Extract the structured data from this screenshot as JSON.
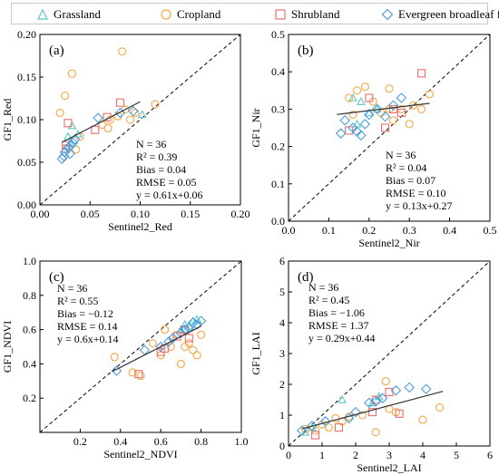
{
  "legend": {
    "items": [
      {
        "label": "Grassland",
        "marker": "triangle",
        "color": "#5fc7c9"
      },
      {
        "label": "Cropland",
        "marker": "circle",
        "color": "#f5a742"
      },
      {
        "label": "Shrubland",
        "marker": "square",
        "color": "#ee6e6e"
      },
      {
        "label": "Evergreen broadleaf forest",
        "marker": "diamond",
        "color": "#4a9fdc"
      }
    ]
  },
  "chart_data": [
    {
      "type": "scatter",
      "panel": "(a)",
      "xlabel": "Sentinel2_Red",
      "ylabel": "GF1_Red",
      "xlim": [
        0,
        0.2
      ],
      "ylim": [
        0,
        0.2
      ],
      "xticks": [
        "0.00",
        "0.05",
        "0.10",
        "0.15",
        "0.20"
      ],
      "yticks": [
        "0.00",
        "0.05",
        "0.10",
        "0.15",
        "0.20"
      ],
      "xtick_values": [
        0,
        0.05,
        0.1,
        0.15,
        0.2
      ],
      "ytick_values": [
        0,
        0.05,
        0.1,
        0.15,
        0.2
      ],
      "stats": [
        "N = 36",
        "R² = 0.39",
        "Bias = 0.04",
        "RMSE = 0.05",
        "y = 0.61x+0.06"
      ],
      "fit": {
        "slope": 0.61,
        "intercept": 0.06,
        "x_range": [
          0.022,
          0.1
        ]
      },
      "one_to_one": true,
      "series": [
        {
          "name": "Grassland",
          "points": [
            [
              0.028,
              0.08
            ],
            [
              0.032,
              0.093
            ],
            [
              0.102,
              0.106
            ],
            [
              0.038,
              0.083
            ],
            [
              0.03,
              0.072
            ]
          ]
        },
        {
          "name": "Cropland",
          "points": [
            [
              0.02,
              0.108
            ],
            [
              0.032,
              0.154
            ],
            [
              0.082,
              0.18
            ],
            [
              0.025,
              0.128
            ],
            [
              0.062,
              0.094
            ],
            [
              0.07,
              0.1
            ],
            [
              0.078,
              0.104
            ],
            [
              0.085,
              0.112
            ],
            [
              0.095,
              0.108
            ],
            [
              0.04,
              0.08
            ],
            [
              0.115,
              0.118
            ],
            [
              0.068,
              0.09
            ],
            [
              0.036,
              0.065
            ],
            [
              0.09,
              0.1
            ]
          ]
        },
        {
          "name": "Shrubland",
          "points": [
            [
              0.026,
              0.07
            ],
            [
              0.028,
              0.096
            ],
            [
              0.055,
              0.088
            ],
            [
              0.067,
              0.103
            ],
            [
              0.08,
              0.12
            ],
            [
              0.026,
              0.066
            ]
          ]
        },
        {
          "name": "Evergreen broadleaf forest",
          "points": [
            [
              0.022,
              0.054
            ],
            [
              0.025,
              0.062
            ],
            [
              0.028,
              0.067
            ],
            [
              0.031,
              0.07
            ],
            [
              0.033,
              0.073
            ],
            [
              0.058,
              0.102
            ],
            [
              0.08,
              0.108
            ],
            [
              0.093,
              0.11
            ],
            [
              0.024,
              0.057
            ],
            [
              0.03,
              0.06
            ],
            [
              0.035,
              0.077
            ]
          ]
        }
      ]
    },
    {
      "type": "scatter",
      "panel": "(b)",
      "xlabel": "Sentinel2_Nir",
      "ylabel": "GF1_Nir",
      "xlim": [
        0,
        0.5
      ],
      "ylim": [
        0,
        0.5
      ],
      "xticks": [
        "0.0",
        "0.1",
        "0.2",
        "0.3",
        "0.4",
        "0.5"
      ],
      "yticks": [
        "0.0",
        "0.1",
        "0.2",
        "0.3",
        "0.4",
        "0.5"
      ],
      "xtick_values": [
        0,
        0.1,
        0.2,
        0.3,
        0.4,
        0.5
      ],
      "ytick_values": [
        0,
        0.1,
        0.2,
        0.3,
        0.4,
        0.5
      ],
      "stats": [
        "N = 36",
        "R² = 0.04",
        "Bias = 0.07",
        "RMSE = 0.10",
        "y = 0.13x+0.27"
      ],
      "fit": {
        "slope": 0.13,
        "intercept": 0.27,
        "x_range": [
          0.12,
          0.35
        ]
      },
      "one_to_one": true,
      "series": [
        {
          "name": "Grassland",
          "points": [
            [
              0.16,
              0.33
            ],
            [
              0.18,
              0.32
            ],
            [
              0.2,
              0.29
            ],
            [
              0.22,
              0.3
            ],
            [
              0.17,
              0.26
            ]
          ]
        },
        {
          "name": "Cropland",
          "points": [
            [
              0.15,
              0.33
            ],
            [
              0.17,
              0.35
            ],
            [
              0.19,
              0.36
            ],
            [
              0.21,
              0.32
            ],
            [
              0.23,
              0.29
            ],
            [
              0.25,
              0.3
            ],
            [
              0.26,
              0.27
            ],
            [
              0.28,
              0.3
            ],
            [
              0.31,
              0.31
            ],
            [
              0.33,
              0.3
            ],
            [
              0.35,
              0.34
            ],
            [
              0.25,
              0.355
            ],
            [
              0.16,
              0.285
            ],
            [
              0.3,
              0.26
            ]
          ]
        },
        {
          "name": "Shrubland",
          "points": [
            [
              0.15,
              0.243
            ],
            [
              0.2,
              0.33
            ],
            [
              0.24,
              0.25
            ],
            [
              0.26,
              0.3
            ],
            [
              0.33,
              0.396
            ],
            [
              0.28,
              0.29
            ]
          ]
        },
        {
          "name": "Evergreen broadleaf forest",
          "points": [
            [
              0.13,
              0.235
            ],
            [
              0.14,
              0.27
            ],
            [
              0.16,
              0.25
            ],
            [
              0.18,
              0.23
            ],
            [
              0.2,
              0.285
            ],
            [
              0.22,
              0.3
            ],
            [
              0.26,
              0.31
            ],
            [
              0.28,
              0.33
            ],
            [
              0.17,
              0.24
            ],
            [
              0.24,
              0.28
            ],
            [
              0.19,
              0.26
            ]
          ]
        }
      ]
    },
    {
      "type": "scatter",
      "panel": "(c)",
      "xlabel": "Sentinel2_NDVI",
      "ylabel": "GF1_NDVI",
      "xlim": [
        0,
        1
      ],
      "ylim": [
        0,
        1
      ],
      "xticks": [
        "0.2",
        "0.4",
        "0.6",
        "0.8",
        "1.0"
      ],
      "yticks": [
        "0.2",
        "0.4",
        "0.6",
        "0.8",
        "1.0"
      ],
      "xtick_values": [
        0.2,
        0.4,
        0.6,
        0.8,
        1.0
      ],
      "ytick_values": [
        0.2,
        0.4,
        0.6,
        0.8,
        1.0
      ],
      "stats": [
        "N = 36",
        "R² = 0.55",
        "Bias = −0.12",
        "RMSE = 0.14",
        "y = 0.6x+0.14"
      ],
      "fit": {
        "slope": 0.6,
        "intercept": 0.14,
        "x_range": [
          0.36,
          0.8
        ]
      },
      "one_to_one": true,
      "series": [
        {
          "name": "Grassland",
          "points": [
            [
              0.7,
              0.6
            ],
            [
              0.72,
              0.63
            ],
            [
              0.76,
              0.65
            ],
            [
              0.78,
              0.66
            ],
            [
              0.74,
              0.62
            ]
          ]
        },
        {
          "name": "Cropland",
          "points": [
            [
              0.37,
              0.44
            ],
            [
              0.46,
              0.35
            ],
            [
              0.5,
              0.33
            ],
            [
              0.6,
              0.45
            ],
            [
              0.65,
              0.5
            ],
            [
              0.68,
              0.57
            ],
            [
              0.7,
              0.4
            ],
            [
              0.72,
              0.5
            ],
            [
              0.74,
              0.52
            ],
            [
              0.76,
              0.48
            ],
            [
              0.8,
              0.57
            ],
            [
              0.78,
              0.45
            ],
            [
              0.62,
              0.6
            ],
            [
              0.56,
              0.52
            ]
          ]
        },
        {
          "name": "Shrubland",
          "points": [
            [
              0.49,
              0.34
            ],
            [
              0.6,
              0.47
            ],
            [
              0.68,
              0.56
            ],
            [
              0.72,
              0.6
            ],
            [
              0.74,
              0.55
            ],
            [
              0.62,
              0.49
            ]
          ]
        },
        {
          "name": "Evergreen broadleaf forest",
          "points": [
            [
              0.38,
              0.36
            ],
            [
              0.52,
              0.48
            ],
            [
              0.64,
              0.53
            ],
            [
              0.7,
              0.58
            ],
            [
              0.72,
              0.6
            ],
            [
              0.76,
              0.64
            ],
            [
              0.78,
              0.63
            ],
            [
              0.8,
              0.65
            ],
            [
              0.66,
              0.55
            ],
            [
              0.74,
              0.61
            ],
            [
              0.6,
              0.5
            ]
          ]
        }
      ]
    },
    {
      "type": "scatter",
      "panel": "(d)",
      "xlabel": "Sentinel2_LAI",
      "ylabel": "GF1_LAI",
      "xlim": [
        0,
        6
      ],
      "ylim": [
        0,
        6
      ],
      "xticks": [
        "0",
        "1",
        "2",
        "3",
        "4",
        "5",
        "6"
      ],
      "yticks": [
        "0",
        "1",
        "2",
        "3",
        "4",
        "5",
        "6"
      ],
      "xtick_values": [
        0,
        1,
        2,
        3,
        4,
        5,
        6
      ],
      "ytick_values": [
        0,
        1,
        2,
        3,
        4,
        5,
        6
      ],
      "stats": [
        "N = 36",
        "R² = 0.45",
        "Bias = −1.06",
        "RMSE = 1.37",
        "y = 0.29x+0.44"
      ],
      "fit": {
        "slope": 0.29,
        "intercept": 0.44,
        "x_range": [
          0.4,
          4.6
        ]
      },
      "one_to_one": true,
      "series": [
        {
          "name": "Grassland",
          "points": [
            [
              0.5,
              0.45
            ],
            [
              0.7,
              0.6
            ],
            [
              1.6,
              1.5
            ],
            [
              2.5,
              1.4
            ],
            [
              2.7,
              1.6
            ]
          ]
        },
        {
          "name": "Cropland",
          "points": [
            [
              0.5,
              0.55
            ],
            [
              0.8,
              0.5
            ],
            [
              1.0,
              0.7
            ],
            [
              1.2,
              0.6
            ],
            [
              1.4,
              0.9
            ],
            [
              1.6,
              0.8
            ],
            [
              2.6,
              0.45
            ],
            [
              2.9,
              2.1
            ],
            [
              3.0,
              1.2
            ],
            [
              3.2,
              1.1
            ],
            [
              4.0,
              0.85
            ],
            [
              4.5,
              1.25
            ],
            [
              2.2,
              1.0
            ],
            [
              1.8,
              0.95
            ]
          ]
        },
        {
          "name": "Shrubland",
          "points": [
            [
              0.8,
              0.35
            ],
            [
              1.5,
              0.6
            ],
            [
              2.5,
              1.1
            ],
            [
              3.0,
              1.75
            ],
            [
              3.3,
              1.05
            ],
            [
              2.6,
              1.5
            ]
          ]
        },
        {
          "name": "Evergreen broadleaf forest",
          "points": [
            [
              0.4,
              0.5
            ],
            [
              0.7,
              0.65
            ],
            [
              1.1,
              0.8
            ],
            [
              1.8,
              0.9
            ],
            [
              2.4,
              1.4
            ],
            [
              2.6,
              1.45
            ],
            [
              2.8,
              1.55
            ],
            [
              3.2,
              1.8
            ],
            [
              3.6,
              1.9
            ],
            [
              4.1,
              1.85
            ],
            [
              2.0,
              1.1
            ]
          ]
        }
      ]
    }
  ]
}
